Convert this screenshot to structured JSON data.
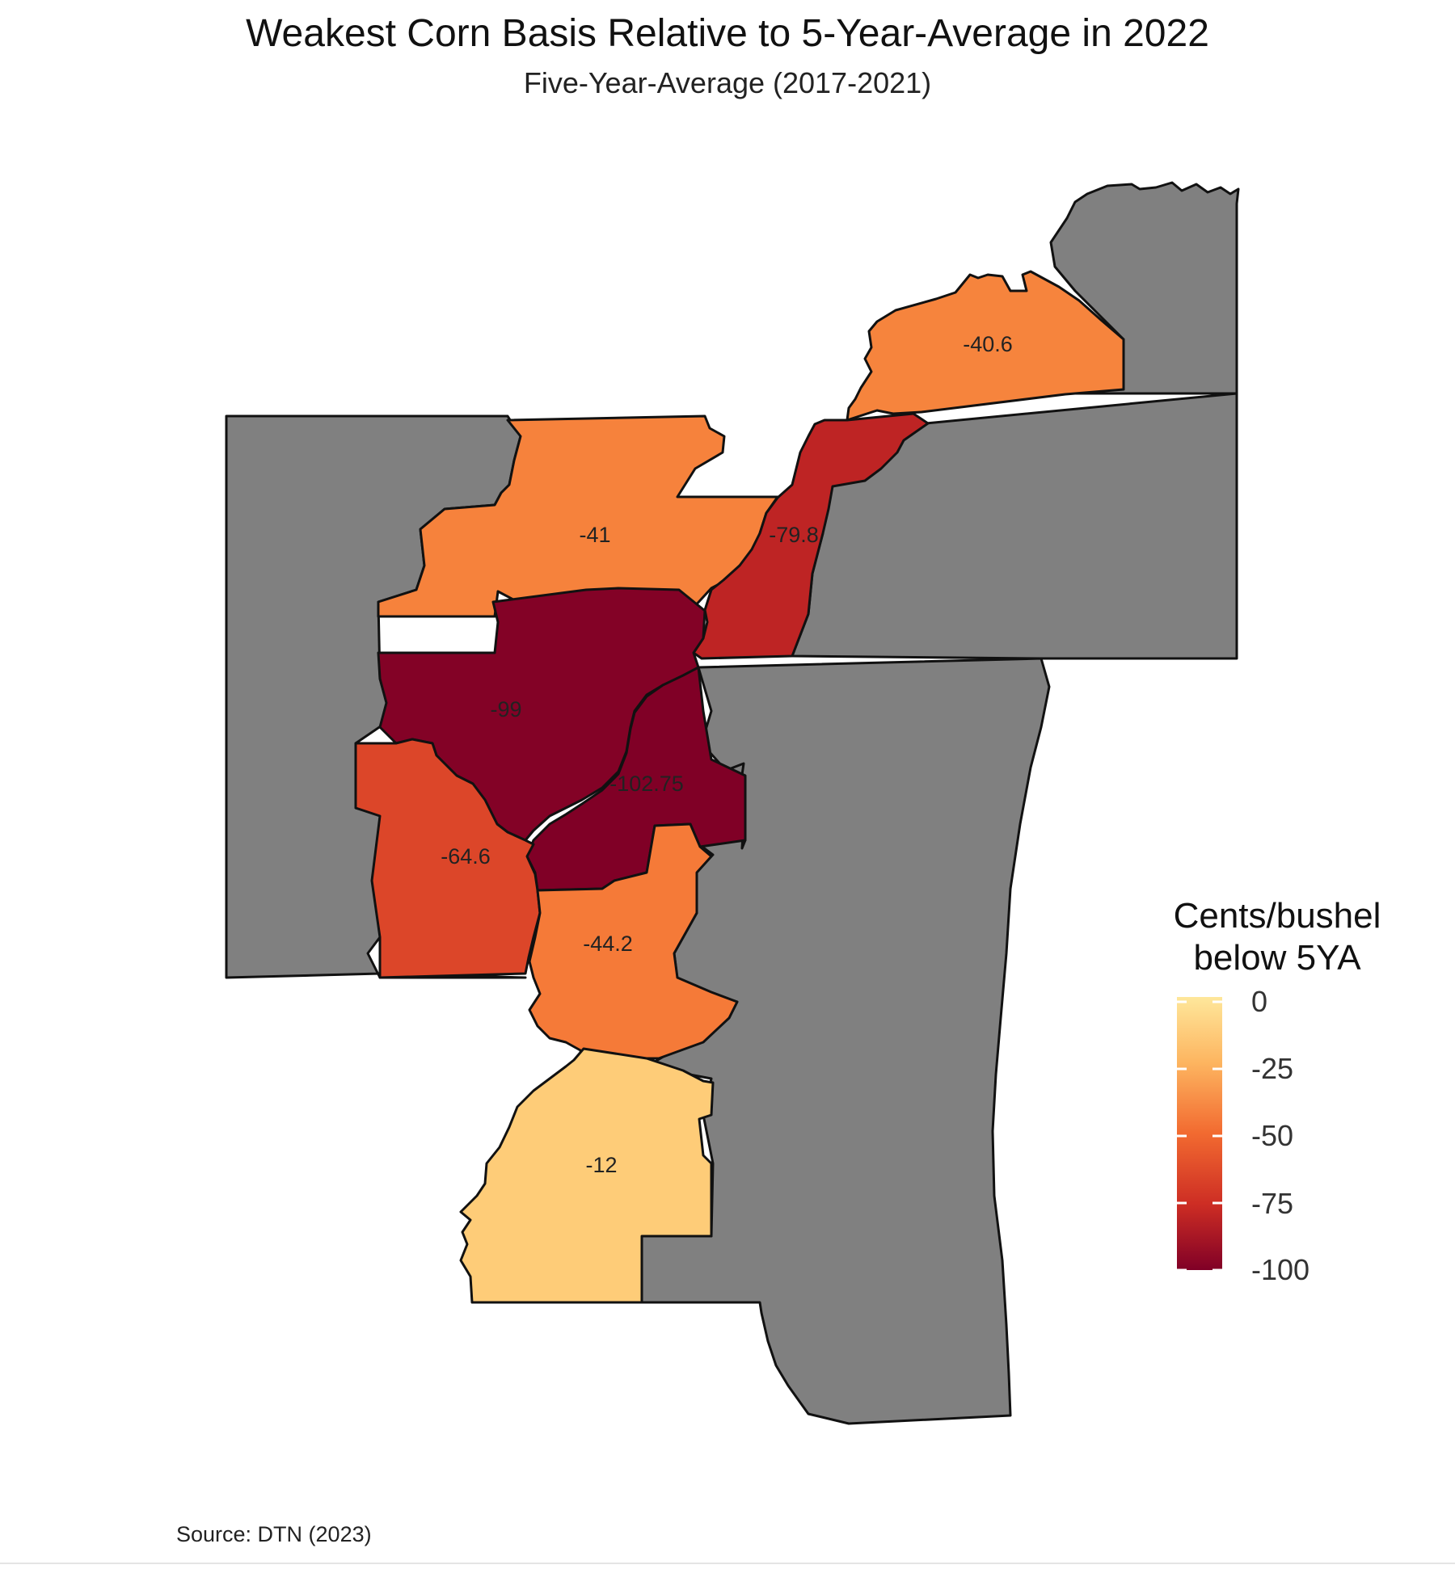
{
  "title": "Weakest Corn Basis Relative to 5-Year-Average in 2022",
  "subtitle": "Five-Year-Average (2017-2021)",
  "source": "Source: DTN (2023)",
  "legend": {
    "title_line1": "Cents/bushel",
    "title_line2": "below 5YA",
    "ticks": [
      "0",
      "-25",
      "-50",
      "-75",
      "-100"
    ],
    "tick_values": [
      0,
      -25,
      -50,
      -75,
      -100
    ],
    "range": [
      -105,
      0
    ],
    "colors": [
      "#fee79b",
      "#fdae52",
      "#f26a30",
      "#cd2d24",
      "#800026"
    ]
  },
  "colors": {
    "no_data": "#808080",
    "border": "#111111"
  },
  "chart_data": {
    "type": "choropleth",
    "variable": "Cents/bushel below 5YA",
    "regions": [
      {
        "id": "north-east-region",
        "value": -40.6,
        "label": "-40.6"
      },
      {
        "id": "north-region",
        "value": -41,
        "label": "-41"
      },
      {
        "id": "river-region-north",
        "value": -79.8,
        "label": "-79.8"
      },
      {
        "id": "central-region",
        "value": -99,
        "label": "-99"
      },
      {
        "id": "central-east-region",
        "value": -102.75,
        "label": "-102.75"
      },
      {
        "id": "west-south-region",
        "value": -64.6,
        "label": "-64.6"
      },
      {
        "id": "south-central-region",
        "value": -44.2,
        "label": "-44.2"
      },
      {
        "id": "south-region",
        "value": -12,
        "label": "-12"
      }
    ]
  }
}
